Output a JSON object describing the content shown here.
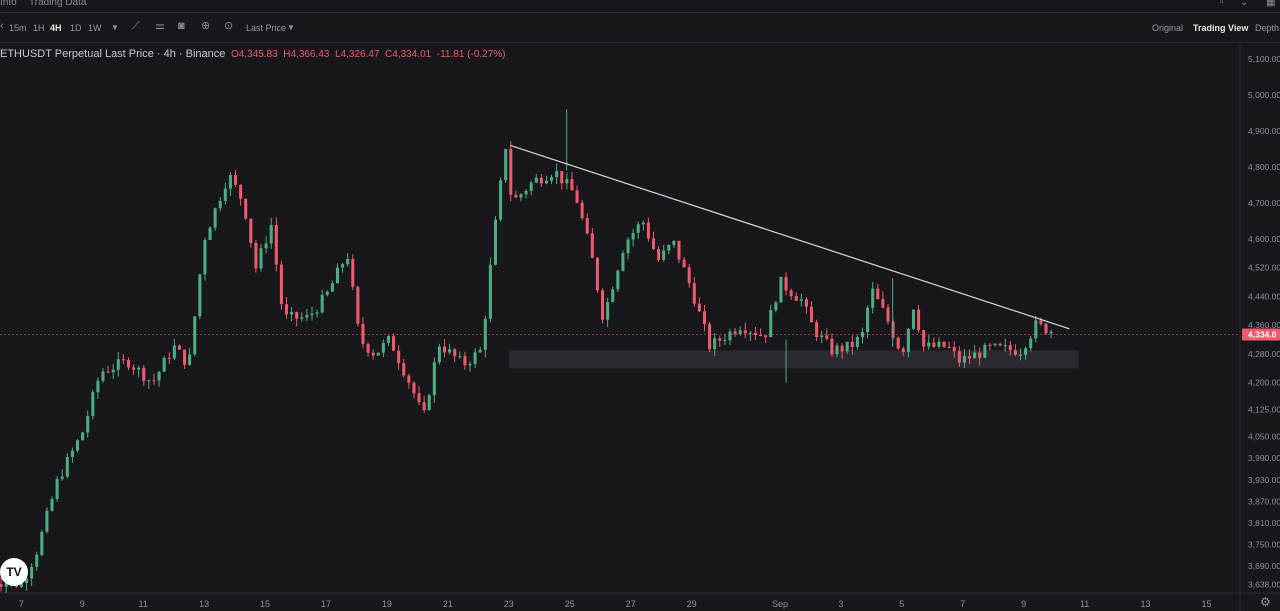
{
  "topbar": {
    "tab_info": "Info",
    "tab_trading_data": "Trading Data"
  },
  "toolbar": {
    "intervals": [
      "15m",
      "1H",
      "4H",
      "1D",
      "1W"
    ],
    "active_interval": "4H",
    "price_type": "Last Price",
    "views": [
      "Original",
      "Trading View",
      "Depth"
    ],
    "active_view": "Trading View"
  },
  "legend": {
    "symbol": "ETHUSDT Perpetual Last Price · 4h · Binance",
    "o": "4,345.83",
    "h": "4,366.43",
    "l": "4,326.47",
    "c": "4,334.01",
    "change": "-11.81 (-0.27%)"
  },
  "colors": {
    "up": "#4caf82",
    "down": "#f05a6b",
    "background": "#17171c",
    "trendline": "#d9d9de",
    "zone": "#2e2e34",
    "price_tag": "#f05a6b"
  },
  "chart_data": {
    "type": "candlestick",
    "last_price_label": "4,334.0",
    "last_price": 4334.01,
    "y_ticks": [
      {
        "v": 5100,
        "label": "5,100.00"
      },
      {
        "v": 5000,
        "label": "5,000.00"
      },
      {
        "v": 4900,
        "label": "4,900.00"
      },
      {
        "v": 4800,
        "label": "4,800.00"
      },
      {
        "v": 4700,
        "label": "4,700.00"
      },
      {
        "v": 4600,
        "label": "4,600.00"
      },
      {
        "v": 4520,
        "label": "4,520.00"
      },
      {
        "v": 4440,
        "label": "4,440.00"
      },
      {
        "v": 4360,
        "label": "4,360.00"
      },
      {
        "v": 4280,
        "label": "4,280.00"
      },
      {
        "v": 4200,
        "label": "4,200.00"
      },
      {
        "v": 4125,
        "label": "4,125.00"
      },
      {
        "v": 4050,
        "label": "4,050.00"
      },
      {
        "v": 3990,
        "label": "3,990.00"
      },
      {
        "v": 3930,
        "label": "3,930.00"
      },
      {
        "v": 3870,
        "label": "3,870.00"
      },
      {
        "v": 3810,
        "label": "3,810.00"
      },
      {
        "v": 3750,
        "label": "3,750.00"
      },
      {
        "v": 3690,
        "label": "3,690.00"
      },
      {
        "v": 3638,
        "label": "3,638.00"
      }
    ],
    "x_ticks": [
      {
        "t": 7,
        "label": "7"
      },
      {
        "t": 9,
        "label": "9"
      },
      {
        "t": 11,
        "label": "11"
      },
      {
        "t": 13,
        "label": "13"
      },
      {
        "t": 15,
        "label": "15"
      },
      {
        "t": 17,
        "label": "17"
      },
      {
        "t": 19,
        "label": "19"
      },
      {
        "t": 21,
        "label": "21"
      },
      {
        "t": 23,
        "label": "23"
      },
      {
        "t": 25,
        "label": "25"
      },
      {
        "t": 27,
        "label": "27"
      },
      {
        "t": 29,
        "label": "29"
      },
      {
        "t": 31.9,
        "label": "Sep"
      },
      {
        "t": 33.9,
        "label": "3"
      },
      {
        "t": 35.9,
        "label": "5"
      },
      {
        "t": 37.9,
        "label": "7"
      },
      {
        "t": 39.9,
        "label": "9"
      },
      {
        "t": 41.9,
        "label": "11"
      },
      {
        "t": 43.9,
        "label": "13"
      },
      {
        "t": 45.9,
        "label": "15"
      }
    ],
    "anchors": [
      [
        6.0,
        3650
      ],
      [
        7.0,
        3640
      ],
      [
        7.5,
        3730
      ],
      [
        8.2,
        3930
      ],
      [
        9.0,
        4060
      ],
      [
        9.6,
        4230
      ],
      [
        10.5,
        4260
      ],
      [
        11.3,
        4200
      ],
      [
        12.0,
        4300
      ],
      [
        12.5,
        4250
      ],
      [
        13.0,
        4600
      ],
      [
        13.8,
        4780
      ],
      [
        14.3,
        4700
      ],
      [
        14.7,
        4520
      ],
      [
        15.2,
        4640
      ],
      [
        15.6,
        4380
      ],
      [
        16.4,
        4380
      ],
      [
        17.0,
        4440
      ],
      [
        17.7,
        4560
      ],
      [
        18.1,
        4320
      ],
      [
        18.6,
        4280
      ],
      [
        19.1,
        4320
      ],
      [
        19.8,
        4190
      ],
      [
        20.2,
        4100
      ],
      [
        20.7,
        4310
      ],
      [
        21.5,
        4250
      ],
      [
        22.1,
        4290
      ],
      [
        22.5,
        4600
      ],
      [
        22.9,
        4860
      ],
      [
        23.1,
        4700
      ],
      [
        23.8,
        4760
      ],
      [
        24.5,
        4790
      ],
      [
        25.2,
        4720
      ],
      [
        25.7,
        4560
      ],
      [
        26.1,
        4380
      ],
      [
        26.8,
        4590
      ],
      [
        27.4,
        4650
      ],
      [
        27.9,
        4540
      ],
      [
        28.4,
        4590
      ],
      [
        29.0,
        4460
      ],
      [
        29.6,
        4300
      ],
      [
        30.6,
        4360
      ],
      [
        31.4,
        4330
      ],
      [
        31.9,
        4480
      ],
      [
        32.6,
        4430
      ],
      [
        33.0,
        4350
      ],
      [
        33.6,
        4290
      ],
      [
        34.2,
        4300
      ],
      [
        34.6,
        4330
      ],
      [
        34.9,
        4460
      ],
      [
        35.4,
        4380
      ],
      [
        35.9,
        4280
      ],
      [
        36.3,
        4420
      ],
      [
        36.6,
        4300
      ],
      [
        37.4,
        4300
      ],
      [
        37.8,
        4260
      ],
      [
        38.8,
        4295
      ],
      [
        39.8,
        4290
      ],
      [
        40.3,
        4360
      ],
      [
        40.8,
        4345
      ]
    ],
    "series_range": [
      6.0,
      40.8
    ],
    "candle_count": 209,
    "trendline": [
      [
        23.05,
        4860
      ],
      [
        41.4,
        4350
      ]
    ],
    "support_zone": [
      4240,
      4290
    ],
    "support_zone_x": [
      23.0,
      41.7
    ],
    "x_range": [
      6.3,
      47.0
    ],
    "y_range": [
      3615,
      5145
    ]
  }
}
